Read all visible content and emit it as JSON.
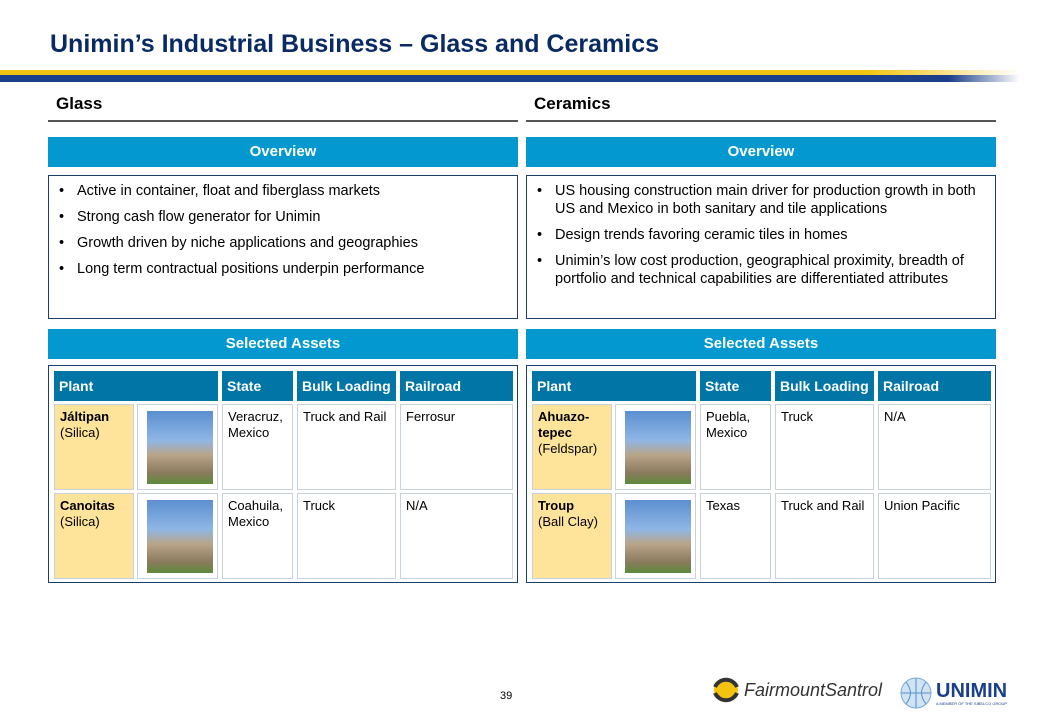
{
  "title": "Unimin’s Industrial Business – Glass and Ceramics",
  "page_number": "39",
  "logos": {
    "fairmount": "FairmountSantrol",
    "unimin": "UNIMIN",
    "unimin_tagline": "A MEMBER OF THE SIBELCO GROUP"
  },
  "colors": {
    "accent": "#0398cf",
    "table_header": "#0075a6",
    "plant_cell": "#fde49a",
    "title": "#0a2a66"
  },
  "headers": [
    "Plant",
    "State",
    "Bulk Loading",
    "Railroad"
  ],
  "glass": {
    "section": "Glass",
    "overview_label": "Overview",
    "assets_label": "Selected Assets",
    "bullets": [
      "Active in container, float and fiberglass markets",
      "Strong cash flow generator for Unimin",
      "Growth driven by niche applications and geographies",
      "Long term contractual positions underpin performance"
    ],
    "rows": [
      {
        "name": "Jáltipan",
        "type": "(Silica)",
        "state": "Veracruz, Mexico",
        "bulk": "Truck and Rail",
        "railroad": "Ferrosur"
      },
      {
        "name": "Canoitas",
        "type": "(Silica)",
        "state": "Coahuila, Mexico",
        "bulk": "Truck",
        "railroad": "N/A"
      }
    ]
  },
  "ceramics": {
    "section": "Ceramics",
    "overview_label": "Overview",
    "assets_label": "Selected Assets",
    "bullets": [
      "US housing construction main driver for production growth in both US and Mexico in both sanitary and tile applications",
      "Design trends favoring ceramic tiles in homes",
      "Unimin’s low cost production, geographical proximity, breadth of portfolio and technical capabilities are differentiated attributes"
    ],
    "rows": [
      {
        "name": "Ahuazo-tepec",
        "type": "(Feldspar)",
        "state": "Puebla, Mexico",
        "bulk": "Truck",
        "railroad": "N/A"
      },
      {
        "name": "Troup",
        "type": "(Ball Clay)",
        "state": "Texas",
        "bulk": "Truck and Rail",
        "railroad": "Union Pacific"
      }
    ]
  }
}
